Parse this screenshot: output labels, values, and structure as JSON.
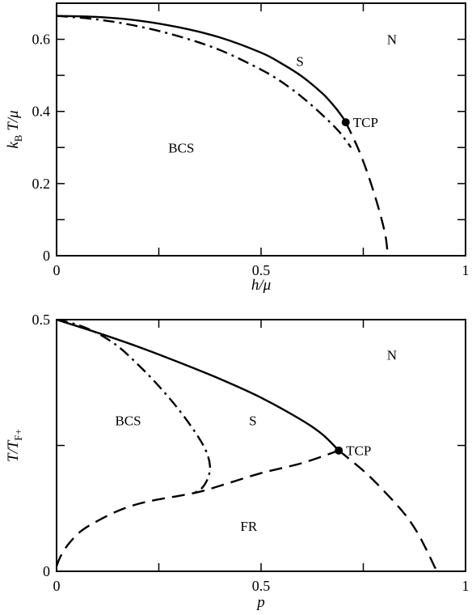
{
  "chart_data": [
    {
      "type": "line",
      "xlabel": {
        "pre": "h/μ",
        "sub": "",
        "post": ""
      },
      "ylabel": {
        "pre": "k",
        "sub": "B",
        "post": " T/μ"
      },
      "xlim": [
        0,
        1
      ],
      "ylim": [
        0,
        0.7
      ],
      "xticks": [
        0,
        0.25,
        0.5,
        0.75,
        1
      ],
      "yticks": [
        0,
        0.1,
        0.2,
        0.3,
        0.4,
        0.5,
        0.6
      ],
      "xtick_labels": [
        {
          "value": 0,
          "text": "0"
        },
        {
          "value": 0.5,
          "text": "0.5"
        },
        {
          "value": 1,
          "text": "1"
        }
      ],
      "ytick_labels": [
        {
          "value": 0,
          "text": "0"
        },
        {
          "value": 0.2,
          "text": "0.2"
        },
        {
          "value": 0.4,
          "text": "0.4"
        },
        {
          "value": 0.6,
          "text": "0.6"
        }
      ],
      "series": [
        {
          "style": "solid",
          "x": [
            0,
            0.1,
            0.2,
            0.3,
            0.4,
            0.5,
            0.55,
            0.6,
            0.65,
            0.68,
            0.7,
            0.707
          ],
          "y": [
            0.665,
            0.662,
            0.652,
            0.633,
            0.605,
            0.563,
            0.533,
            0.497,
            0.45,
            0.413,
            0.383,
            0.37
          ]
        },
        {
          "style": "dashdot",
          "x": [
            0,
            0.1,
            0.2,
            0.3,
            0.4,
            0.5,
            0.55,
            0.6,
            0.65,
            0.69,
            0.72
          ],
          "y": [
            0.665,
            0.655,
            0.636,
            0.608,
            0.57,
            0.516,
            0.482,
            0.44,
            0.39,
            0.345,
            0.3
          ]
        },
        {
          "style": "dashed",
          "x": [
            0.707,
            0.72,
            0.74,
            0.76,
            0.78,
            0.795,
            0.805,
            0.81
          ],
          "y": [
            0.37,
            0.34,
            0.29,
            0.23,
            0.16,
            0.1,
            0.05,
            0.0
          ]
        }
      ],
      "points": [
        {
          "label": "TCP",
          "x": 0.707,
          "y": 0.37
        }
      ],
      "annotations": [
        {
          "text": "N",
          "x": 0.82,
          "y": 0.6
        },
        {
          "text": "S",
          "x": 0.595,
          "y": 0.54
        },
        {
          "text": "BCS",
          "x": 0.305,
          "y": 0.3
        }
      ]
    },
    {
      "type": "line",
      "xlabel": {
        "pre": "p",
        "sub": "",
        "post": ""
      },
      "ylabel": {
        "pre": "T/T",
        "sub": "F+",
        "post": ""
      },
      "xlim": [
        0,
        1
      ],
      "ylim": [
        0,
        0.5
      ],
      "xticks": [
        0,
        0.25,
        0.5,
        0.75,
        1
      ],
      "yticks": [
        0,
        0.25,
        0.5
      ],
      "xtick_labels": [
        {
          "value": 0,
          "text": "0"
        },
        {
          "value": 0.5,
          "text": "0.5"
        },
        {
          "value": 1,
          "text": "1"
        }
      ],
      "ytick_labels": [
        {
          "value": 0,
          "text": "0"
        },
        {
          "value": 0.5,
          "text": "0.5"
        }
      ],
      "series": [
        {
          "style": "solid",
          "x": [
            0,
            0.1,
            0.2,
            0.3,
            0.4,
            0.5,
            0.6,
            0.65,
            0.69
          ],
          "y": [
            0.5,
            0.474,
            0.446,
            0.415,
            0.382,
            0.345,
            0.3,
            0.272,
            0.24
          ]
        },
        {
          "style": "dashdot",
          "x": [
            0,
            0.05,
            0.1,
            0.15,
            0.2,
            0.25,
            0.3,
            0.34,
            0.365,
            0.375,
            0.37,
            0.355,
            0.335
          ],
          "y": [
            0.5,
            0.49,
            0.473,
            0.447,
            0.41,
            0.368,
            0.32,
            0.275,
            0.24,
            0.21,
            0.185,
            0.165,
            0.155
          ]
        },
        {
          "style": "dashed",
          "x": [
            0,
            0.01,
            0.03,
            0.06,
            0.1,
            0.15,
            0.2,
            0.25,
            0.3,
            0.35,
            0.4,
            0.5,
            0.6,
            0.69
          ],
          "y": [
            0.01,
            0.03,
            0.055,
            0.08,
            0.1,
            0.12,
            0.134,
            0.143,
            0.15,
            0.158,
            0.17,
            0.195,
            0.215,
            0.24
          ]
        },
        {
          "style": "dashed",
          "x": [
            0.69,
            0.75,
            0.8,
            0.85,
            0.88,
            0.9,
            0.915,
            0.925,
            0.932
          ],
          "y": [
            0.24,
            0.2,
            0.16,
            0.115,
            0.08,
            0.05,
            0.025,
            0.008,
            0.0
          ]
        }
      ],
      "points": [
        {
          "label": "TCP",
          "x": 0.69,
          "y": 0.24
        }
      ],
      "annotations": [
        {
          "text": "N",
          "x": 0.82,
          "y": 0.43
        },
        {
          "text": "S",
          "x": 0.48,
          "y": 0.3
        },
        {
          "text": "BCS",
          "x": 0.175,
          "y": 0.3
        },
        {
          "text": "FR",
          "x": 0.47,
          "y": 0.09
        }
      ]
    }
  ]
}
